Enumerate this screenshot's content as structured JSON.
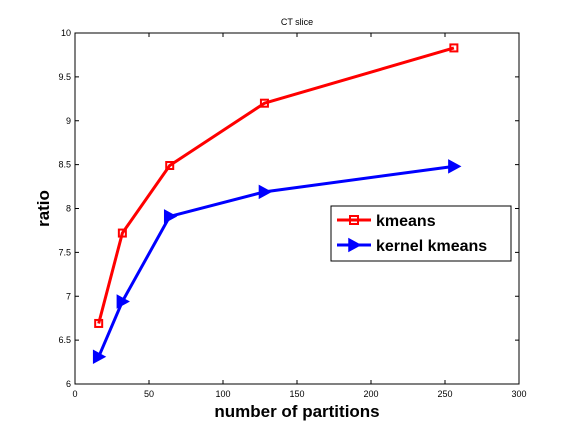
{
  "chart_data": {
    "type": "line",
    "title": "CT slice",
    "xlabel": "number of partitions",
    "ylabel": "ratio",
    "xlim": [
      0,
      300
    ],
    "ylim": [
      6,
      10
    ],
    "xticks": [
      0,
      50,
      100,
      150,
      200,
      250,
      300
    ],
    "yticks": [
      6,
      6.5,
      7,
      7.5,
      8,
      8.5,
      9,
      9.5,
      10
    ],
    "ytick_labels": [
      "6",
      "6.5",
      "7",
      "7.5",
      "8",
      "8.5",
      "9",
      "9.5",
      "10"
    ],
    "grid": false,
    "legend_position": "right",
    "series": [
      {
        "name": "kmeans",
        "color": "#ff0000",
        "marker": "square",
        "x": [
          16,
          32,
          64,
          128,
          256
        ],
        "y": [
          6.69,
          7.72,
          8.49,
          9.2,
          9.83
        ]
      },
      {
        "name": "kernel kmeans",
        "color": "#0000ff",
        "marker": "triangle-right",
        "x": [
          16,
          32,
          64,
          128,
          256
        ],
        "y": [
          6.31,
          6.94,
          7.91,
          8.19,
          8.48
        ]
      }
    ]
  }
}
